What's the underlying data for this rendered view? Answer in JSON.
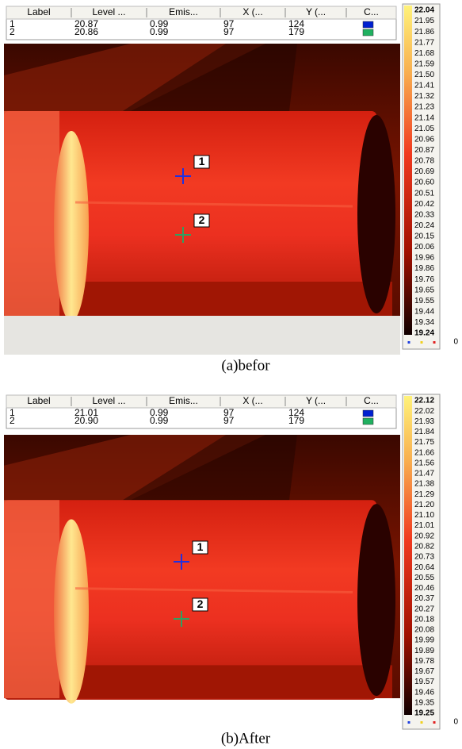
{
  "panels": [
    {
      "table": {
        "columns": [
          "Label",
          "Level ...",
          "Emis...",
          "X (...",
          "Y (...",
          "C..."
        ],
        "rows": [
          [
            "1",
            "20.87",
            "0.99",
            "97",
            "124"
          ],
          [
            "2",
            "20.86",
            "0.99",
            "97",
            "179"
          ]
        ]
      },
      "markers": [
        "1",
        "2"
      ],
      "colorbar": [
        "22.04",
        "21.95",
        "21.86",
        "21.77",
        "21.68",
        "21.59",
        "21.50",
        "21.41",
        "21.32",
        "21.23",
        "21.14",
        "21.05",
        "20.96",
        "20.87",
        "20.78",
        "20.69",
        "20.60",
        "20.51",
        "20.42",
        "20.33",
        "20.24",
        "20.15",
        "20.06",
        "19.96",
        "19.86",
        "19.76",
        "19.65",
        "19.55",
        "19.44",
        "19.34",
        "19.24"
      ],
      "colorbar_footer": "0",
      "caption": "(a)befor"
    },
    {
      "table": {
        "columns": [
          "Label",
          "Level ...",
          "Emis...",
          "X (...",
          "Y (...",
          "C..."
        ],
        "rows": [
          [
            "1",
            "21.01",
            "0.99",
            "97",
            "124"
          ],
          [
            "2",
            "20.90",
            "0.99",
            "97",
            "179"
          ]
        ]
      },
      "markers": [
        "1",
        "2"
      ],
      "colorbar": [
        "22.12",
        "22.02",
        "21.93",
        "21.84",
        "21.75",
        "21.66",
        "21.56",
        "21.47",
        "21.38",
        "21.29",
        "21.20",
        "21.10",
        "21.01",
        "20.92",
        "20.82",
        "20.73",
        "20.64",
        "20.55",
        "20.46",
        "20.37",
        "20.27",
        "20.18",
        "20.08",
        "19.99",
        "19.89",
        "19.78",
        "19.67",
        "19.57",
        "19.46",
        "19.35",
        "19.25"
      ],
      "colorbar_footer": "0",
      "caption": "(b)After"
    }
  ]
}
